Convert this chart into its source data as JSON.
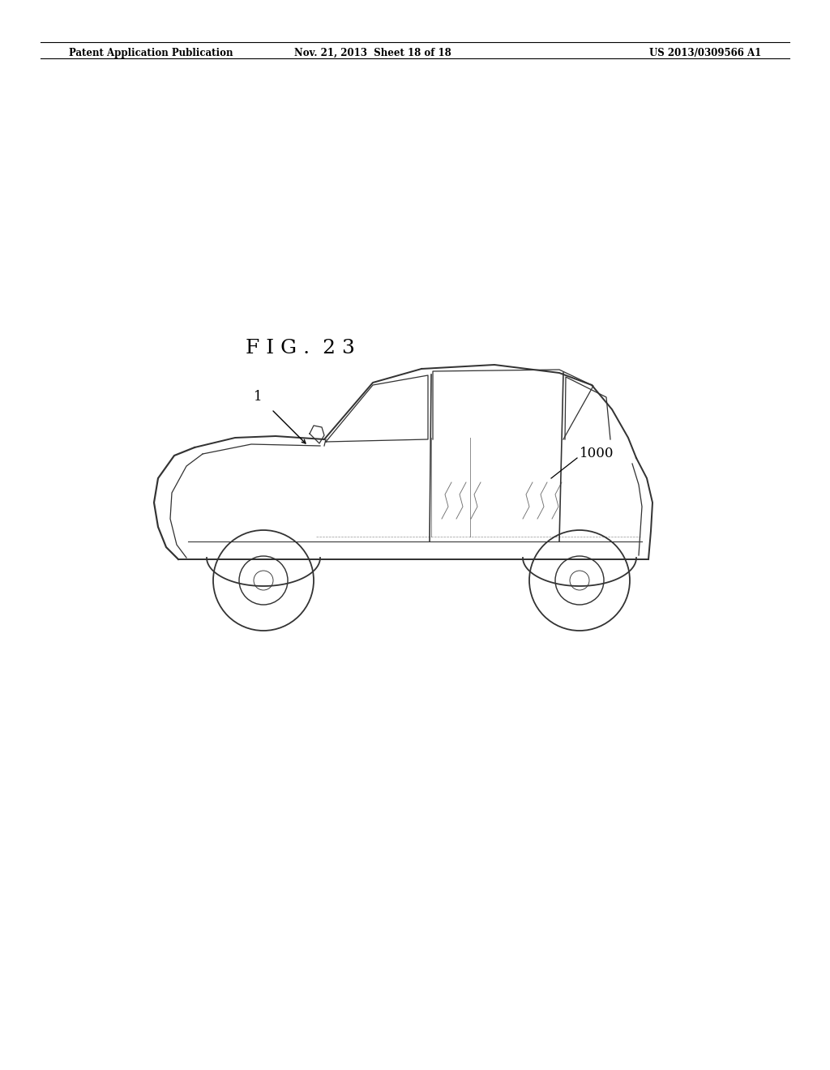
{
  "background_color": "#ffffff",
  "header_left": "Patent Application Publication",
  "header_mid": "Nov. 21, 2013  Sheet 18 of 18",
  "header_right": "US 2013/0309566 A1",
  "fig_label": "F I G .  2 3",
  "label_color": "#333333",
  "line_color": "#333333"
}
